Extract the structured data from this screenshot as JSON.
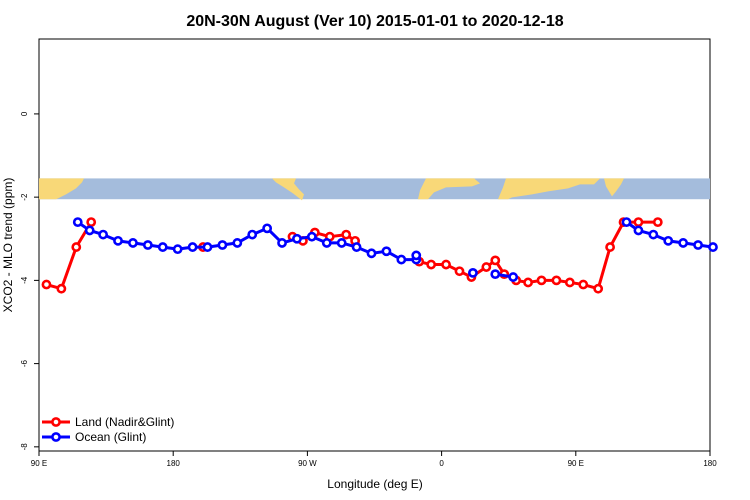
{
  "chart_data": {
    "type": "line",
    "title": "20N-30N August (Ver 10)   2015-01-01 to 2020-12-18",
    "xlabel": "Longitude (deg E)",
    "ylabel": "XCO2 - MLO trend (ppm)",
    "xlim": [
      90,
      540
    ],
    "ylim": [
      -8.1,
      1.8
    ],
    "x_ticks": [
      {
        "value": 90,
        "label": "90 E"
      },
      {
        "value": 180,
        "label": "180"
      },
      {
        "value": 270,
        "label": "90 W"
      },
      {
        "value": 360,
        "label": "0"
      },
      {
        "value": 450,
        "label": "90 E"
      },
      {
        "value": 540,
        "label": "180"
      }
    ],
    "y_ticks": [
      {
        "value": 0,
        "label": "0"
      },
      {
        "value": -2,
        "label": "-2"
      },
      {
        "value": -4,
        "label": "-4"
      },
      {
        "value": -6,
        "label": "-6"
      },
      {
        "value": -8,
        "label": "-8"
      }
    ],
    "map_strip": {
      "y_top": -1.55,
      "y_bottom": -2.05,
      "ocean_color": "#a4bcdc",
      "land_color": "#f8d878"
    },
    "legend_position": "bottom-left",
    "series": [
      {
        "name": "Land (Nadir&Glint)",
        "color": "#ff0000",
        "segments": [
          {
            "x": [
              95,
              105,
              115,
              125
            ],
            "y": [
              -4.1,
              -4.2,
              -3.2,
              -2.6
            ]
          },
          {
            "x": [
              200
            ],
            "y": [
              -3.2
            ]
          },
          {
            "x": [
              260,
              267,
              275,
              285,
              296,
              302
            ],
            "y": [
              -2.95,
              -3.05,
              -2.85,
              -2.95,
              -2.9,
              -3.05
            ]
          },
          {
            "x": [
              345,
              353,
              363,
              372,
              380,
              390,
              396,
              402
            ],
            "y": [
              -3.55,
              -3.62,
              -3.62,
              -3.78,
              -3.92,
              -3.68,
              -3.52,
              -3.85
            ]
          },
          {
            "x": [
              410,
              418,
              427,
              437,
              446,
              455,
              465,
              473,
              482,
              492,
              505
            ],
            "y": [
              -4.0,
              -4.05,
              -4.0,
              -4.0,
              -4.05,
              -4.1,
              -4.2,
              -3.2,
              -2.6,
              -2.6,
              -2.6
            ]
          }
        ]
      },
      {
        "name": "Ocean (Glint)",
        "color": "#0000ff",
        "segments": [
          {
            "x": [
              116,
              124,
              133,
              143,
              153,
              163,
              173,
              183,
              193,
              203,
              213,
              223,
              233,
              243,
              253,
              263,
              273,
              283,
              293,
              303,
              313,
              323,
              333,
              343
            ],
            "y": [
              -2.6,
              -2.8,
              -2.9,
              -3.05,
              -3.1,
              -3.15,
              -3.2,
              -3.25,
              -3.2,
              -3.2,
              -3.15,
              -3.1,
              -2.9,
              -2.75,
              -3.1,
              -3.0,
              -2.95,
              -3.1,
              -3.1,
              -3.2,
              -3.35,
              -3.3,
              -3.5,
              -3.5
            ]
          },
          {
            "x": [
              343
            ],
            "y": [
              -3.4
            ]
          },
          {
            "x": [
              381
            ],
            "y": [
              -3.82
            ]
          },
          {
            "x": [
              396,
              408
            ],
            "y": [
              -3.85,
              -3.92
            ]
          },
          {
            "x": [
              484,
              492,
              502,
              512,
              522,
              532,
              542
            ],
            "y": [
              -2.6,
              -2.8,
              -2.9,
              -3.05,
              -3.1,
              -3.15,
              -3.2
            ]
          }
        ]
      }
    ]
  }
}
